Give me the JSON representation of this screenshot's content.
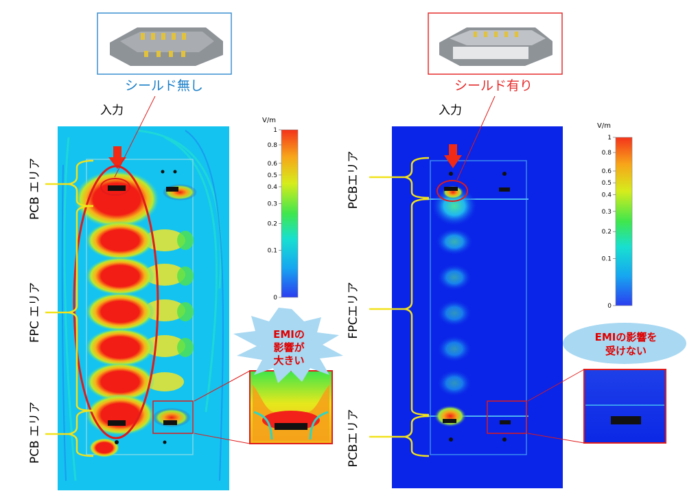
{
  "left_panel": {
    "caption": "シールド無し",
    "input_label": "入力",
    "region_labels": [
      "PCB エリア",
      "FPC エリア",
      "PCB エリア"
    ],
    "callout": [
      "EMIの",
      "影響が",
      "大きい"
    ],
    "colors": {
      "field_bg": "#14c3ef",
      "hot": "#f21d14",
      "caption": "#1a7fc8",
      "callout_bg": "#a8d8f2",
      "callout_text": "#e00000"
    }
  },
  "right_panel": {
    "caption": "シールド有り",
    "input_label": "入力",
    "region_labels": [
      "PCBエリア",
      "FPCエリア",
      "PCBエリア"
    ],
    "callout": [
      "EMIの影響を",
      "受けない"
    ],
    "colors": {
      "field_bg": "#0a24e8",
      "hot": "#f21d14",
      "caption": "#e52b2b",
      "callout_bg": "#a8d8f2",
      "callout_text": "#e00000"
    }
  },
  "colorbar": {
    "unit": "V/m",
    "ticks": [
      "1",
      "0.8",
      "0.6",
      "0.5",
      "0.4",
      "0.3",
      "0.2",
      "0.1",
      "0"
    ],
    "tick_values": [
      1,
      0.8,
      0.6,
      0.5,
      0.4,
      0.3,
      0.2,
      0.1,
      0
    ],
    "gradient": [
      "#2b3df0",
      "#16a8f0",
      "#18e0d0",
      "#3fe64d",
      "#d6ec1c",
      "#f7a51a",
      "#f4331b"
    ]
  }
}
